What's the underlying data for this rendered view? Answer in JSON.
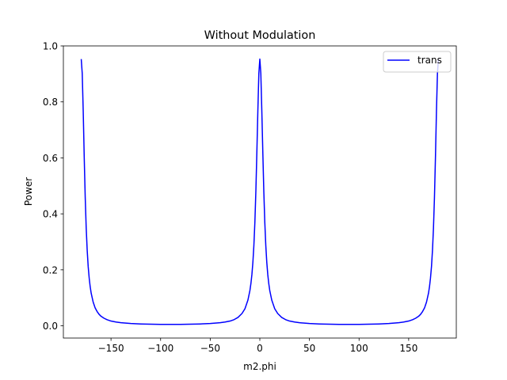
{
  "chart_data": {
    "type": "line",
    "title": "Without Modulation",
    "xlabel": "m2.phi",
    "ylabel": "Power",
    "xlim": [
      -198,
      198
    ],
    "ylim": [
      -0.0437,
      1.0
    ],
    "xticks": [
      -150,
      -100,
      -50,
      0,
      50,
      100,
      150
    ],
    "xtick_labels": [
      "−150",
      "−100",
      "−50",
      "0",
      "50",
      "100",
      "150"
    ],
    "yticks": [
      0.0,
      0.2,
      0.4,
      0.6,
      0.8,
      1.0
    ],
    "ytick_labels": [
      "0.0",
      "0.2",
      "0.4",
      "0.6",
      "0.8",
      "1.0"
    ],
    "grid": false,
    "legend": {
      "position": "top-right",
      "entries": [
        "trans"
      ]
    },
    "series": [
      {
        "name": "trans",
        "color": "#0000ff",
        "x": [
          -180,
          -179,
          -178,
          -177,
          -176,
          -175,
          -174,
          -173,
          -172,
          -171,
          -170,
          -168,
          -166,
          -164,
          -162,
          -160,
          -157,
          -154,
          -150,
          -145,
          -140,
          -130,
          -120,
          -110,
          -100,
          -90,
          -80,
          -70,
          -60,
          -50,
          -40,
          -35,
          -30,
          -26,
          -22,
          -18,
          -15,
          -12,
          -10,
          -9,
          -8,
          -7,
          -6,
          -5,
          -4,
          -3,
          -2,
          -1,
          0,
          1,
          2,
          3,
          4,
          5,
          6,
          7,
          8,
          9,
          10,
          12,
          15,
          18,
          22,
          26,
          30,
          35,
          40,
          50,
          60,
          70,
          80,
          90,
          100,
          110,
          120,
          130,
          140,
          145,
          150,
          154,
          157,
          160,
          162,
          164,
          166,
          168,
          170,
          171,
          172,
          173,
          174,
          175,
          176,
          177,
          178,
          179,
          180
        ],
        "y": [
          0.953,
          0.902,
          0.767,
          0.604,
          0.46,
          0.35,
          0.27,
          0.212,
          0.171,
          0.14,
          0.117,
          0.085,
          0.064,
          0.051,
          0.041,
          0.034,
          0.027,
          0.022,
          0.017,
          0.0135,
          0.011,
          0.0082,
          0.0066,
          0.0057,
          0.0052,
          0.005,
          0.0052,
          0.0057,
          0.0066,
          0.0082,
          0.011,
          0.0135,
          0.017,
          0.022,
          0.03,
          0.044,
          0.061,
          0.092,
          0.126,
          0.151,
          0.183,
          0.227,
          0.287,
          0.37,
          0.481,
          0.62,
          0.767,
          0.902,
          0.953,
          0.902,
          0.767,
          0.62,
          0.481,
          0.37,
          0.287,
          0.227,
          0.183,
          0.151,
          0.126,
          0.092,
          0.061,
          0.044,
          0.03,
          0.022,
          0.017,
          0.0135,
          0.011,
          0.0082,
          0.0066,
          0.0057,
          0.0052,
          0.005,
          0.0052,
          0.0057,
          0.0066,
          0.0082,
          0.011,
          0.0135,
          0.017,
          0.022,
          0.027,
          0.034,
          0.041,
          0.051,
          0.064,
          0.085,
          0.117,
          0.14,
          0.171,
          0.212,
          0.27,
          0.35,
          0.46,
          0.604,
          0.767,
          0.902,
          0.953
        ]
      }
    ]
  }
}
